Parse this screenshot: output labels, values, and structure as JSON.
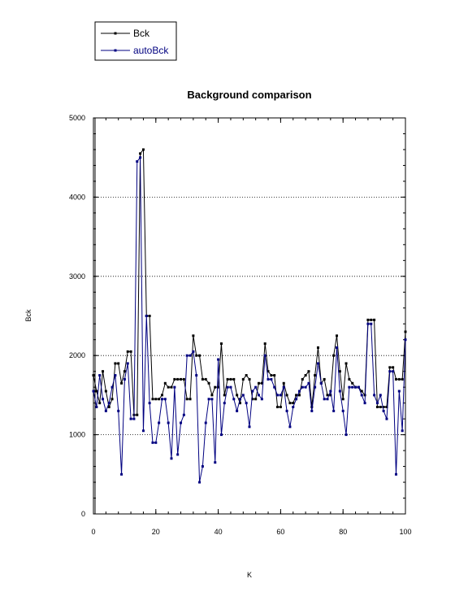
{
  "chart_data": {
    "type": "line",
    "title": "Background comparison",
    "xlabel": "K",
    "ylabel": "Bck",
    "xlim": [
      0,
      100
    ],
    "ylim": [
      0,
      5000
    ],
    "xticks": [
      0,
      20,
      40,
      60,
      80,
      100
    ],
    "yticks": [
      0,
      1000,
      2000,
      3000,
      4000,
      5000
    ],
    "grid": "horizontal dotted",
    "legend_position": "top-left",
    "x": [
      0,
      1,
      2,
      3,
      4,
      5,
      6,
      7,
      8,
      9,
      10,
      11,
      12,
      13,
      14,
      15,
      16,
      17,
      18,
      19,
      20,
      21,
      22,
      23,
      24,
      25,
      26,
      27,
      28,
      29,
      30,
      31,
      32,
      33,
      34,
      35,
      36,
      37,
      38,
      39,
      40,
      41,
      42,
      43,
      44,
      45,
      46,
      47,
      48,
      49,
      50,
      51,
      52,
      53,
      54,
      55,
      56,
      57,
      58,
      59,
      60,
      61,
      62,
      63,
      64,
      65,
      66,
      67,
      68,
      69,
      70,
      71,
      72,
      73,
      74,
      75,
      76,
      77,
      78,
      79,
      80,
      81,
      82,
      83,
      84,
      85,
      86,
      87,
      88,
      89,
      90,
      91,
      92,
      93,
      94,
      95,
      96,
      97,
      98,
      99,
      100
    ],
    "series": [
      {
        "name": "Bck",
        "color": "#000000",
        "values": [
          1750,
          1550,
          1400,
          1800,
          1550,
          1350,
          1450,
          1900,
          1900,
          1650,
          1800,
          2050,
          2050,
          1250,
          1250,
          4550,
          4600,
          2500,
          2500,
          1450,
          1450,
          1450,
          1500,
          1650,
          1600,
          1600,
          1700,
          1700,
          1700,
          1700,
          1450,
          1450,
          2250,
          2000,
          2000,
          1700,
          1700,
          1650,
          1500,
          1600,
          1600,
          2150,
          1500,
          1700,
          1700,
          1700,
          1500,
          1400,
          1700,
          1750,
          1700,
          1450,
          1450,
          1650,
          1650,
          2150,
          1800,
          1750,
          1750,
          1350,
          1350,
          1650,
          1500,
          1400,
          1400,
          1500,
          1500,
          1700,
          1750,
          1800,
          1350,
          1750,
          2100,
          1650,
          1700,
          1500,
          1500,
          2000,
          2250,
          1800,
          1450,
          1900,
          1700,
          1650,
          1600,
          1600,
          1550,
          1500,
          2450,
          2450,
          2450,
          1350,
          1350,
          1350,
          1350,
          1850,
          1850,
          1700,
          1700,
          1700,
          2300
        ]
      },
      {
        "name": "autoBck",
        "color": "#000080",
        "values": [
          1550,
          1350,
          1750,
          1450,
          1300,
          1400,
          1600,
          1750,
          1300,
          500,
          1700,
          1900,
          1200,
          1200,
          4450,
          4500,
          1050,
          2500,
          1400,
          900,
          900,
          1150,
          1450,
          1450,
          1150,
          700,
          1600,
          750,
          1150,
          1250,
          2000,
          2000,
          2050,
          1750,
          400,
          600,
          1150,
          1450,
          1450,
          650,
          1950,
          1000,
          1400,
          1600,
          1600,
          1450,
          1300,
          1450,
          1500,
          1400,
          1100,
          1550,
          1600,
          1500,
          1450,
          2000,
          1700,
          1700,
          1600,
          1500,
          1500,
          1600,
          1300,
          1100,
          1350,
          1450,
          1550,
          1600,
          1600,
          1650,
          1300,
          1600,
          1900,
          1650,
          1450,
          1450,
          1550,
          1300,
          2100,
          1550,
          1300,
          1000,
          1600,
          1600,
          1600,
          1600,
          1500,
          1400,
          2400,
          2400,
          1500,
          1400,
          1500,
          1300,
          1200,
          1800,
          1800,
          500,
          1550,
          1050,
          2200
        ]
      }
    ]
  }
}
